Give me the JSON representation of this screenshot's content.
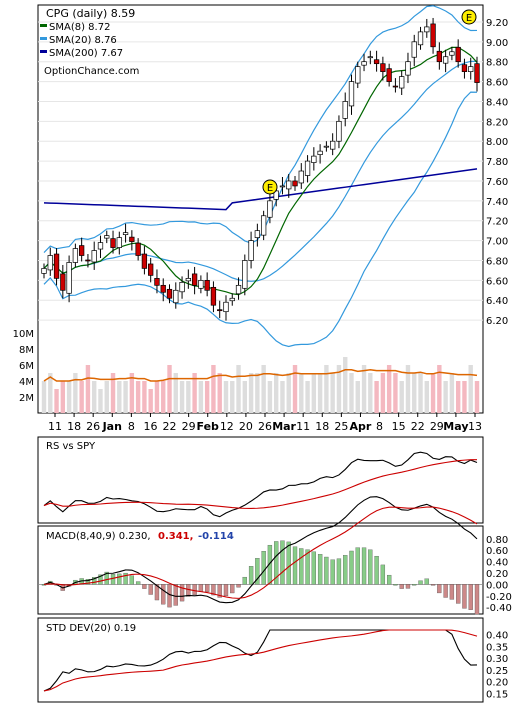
{
  "chart_data": {
    "type": "candlestick",
    "title": "CPG (daily) 8.59",
    "legend": [
      {
        "label": "SMA(8) 8.72",
        "color": "#006600"
      },
      {
        "label": "SMA(20) 8.76",
        "color": "#3399dd"
      },
      {
        "label": "SMA(200) 7.67",
        "color": "#000099"
      }
    ],
    "watermark": "OptionChance.com",
    "price_axis": {
      "ticks": [
        "9.20",
        "9.00",
        "8.80",
        "8.60",
        "8.40",
        "8.20",
        "8.00",
        "7.80",
        "7.60",
        "7.40",
        "7.20",
        "7.00",
        "6.80",
        "6.60",
        "6.40",
        "6.20"
      ],
      "range": [
        6.0,
        9.3
      ]
    },
    "volume_axis": {
      "ticks": [
        "10M",
        "8M",
        "6M",
        "4M",
        "2M"
      ],
      "range": [
        0,
        11
      ]
    },
    "x_ticks": [
      "11",
      "18",
      "26",
      "Jan",
      "8",
      "16",
      "22",
      "29",
      "Feb",
      "12",
      "20",
      "26",
      "Mar",
      "11",
      "18",
      "25",
      "Apr",
      "8",
      "15",
      "22",
      "29",
      "May",
      "13"
    ],
    "bold_x_ticks": [
      "Jan",
      "Feb",
      "Mar",
      "Apr",
      "May"
    ],
    "earnings_markers": [
      "E",
      "E"
    ],
    "price_series": [
      6.72,
      6.85,
      6.62,
      6.5,
      6.78,
      6.92,
      6.85,
      6.8,
      6.9,
      6.98,
      7.05,
      6.93,
      7.03,
      7.08,
      6.99,
      6.85,
      6.72,
      6.65,
      6.55,
      6.48,
      6.42,
      6.5,
      6.58,
      6.62,
      6.55,
      6.6,
      6.5,
      6.35,
      6.3,
      6.38,
      6.42,
      6.55,
      6.8,
      7.0,
      7.1,
      7.25,
      7.4,
      7.5,
      7.55,
      7.6,
      7.55,
      7.7,
      7.8,
      7.85,
      7.9,
      7.95,
      8.0,
      8.2,
      8.4,
      8.6,
      8.75,
      8.8,
      8.85,
      8.78,
      8.7,
      8.6,
      8.55,
      8.65,
      8.8,
      9.0,
      9.1,
      9.15,
      8.95,
      8.8,
      8.85,
      8.9,
      8.8,
      8.7,
      8.75,
      8.59
    ],
    "volume_series": [
      4,
      5,
      3,
      4,
      4,
      5,
      4,
      6,
      4,
      3,
      4,
      5,
      4,
      4,
      5,
      4,
      4,
      3,
      4,
      4,
      6,
      5,
      4,
      4,
      5,
      4,
      4,
      6,
      5,
      4,
      4,
      6,
      4,
      5,
      5,
      6,
      4,
      5,
      4,
      5,
      6,
      5,
      4,
      5,
      5,
      6,
      5,
      6,
      7,
      5,
      4,
      6,
      5,
      4,
      5,
      6,
      5,
      4,
      6,
      5,
      5,
      4,
      5,
      6,
      4,
      5,
      4,
      4,
      6,
      4
    ],
    "panels": [
      {
        "name": "RS vs SPY",
        "label": "RS vs SPY"
      },
      {
        "name": "MACD",
        "label": "MACD(8,40,9) 0.230,",
        "value_red": "0.341,",
        "value_blue": "-0.114",
        "ticks": [
          "0.80",
          "0.60",
          "0.40",
          "0.20",
          "0.00",
          "-0.20",
          "-0.40"
        ]
      },
      {
        "name": "STD DEV",
        "label": "STD DEV(20) 0.19",
        "ticks": [
          "0.40",
          "0.35",
          "0.30",
          "0.25",
          "0.20",
          "0.15"
        ]
      }
    ]
  }
}
